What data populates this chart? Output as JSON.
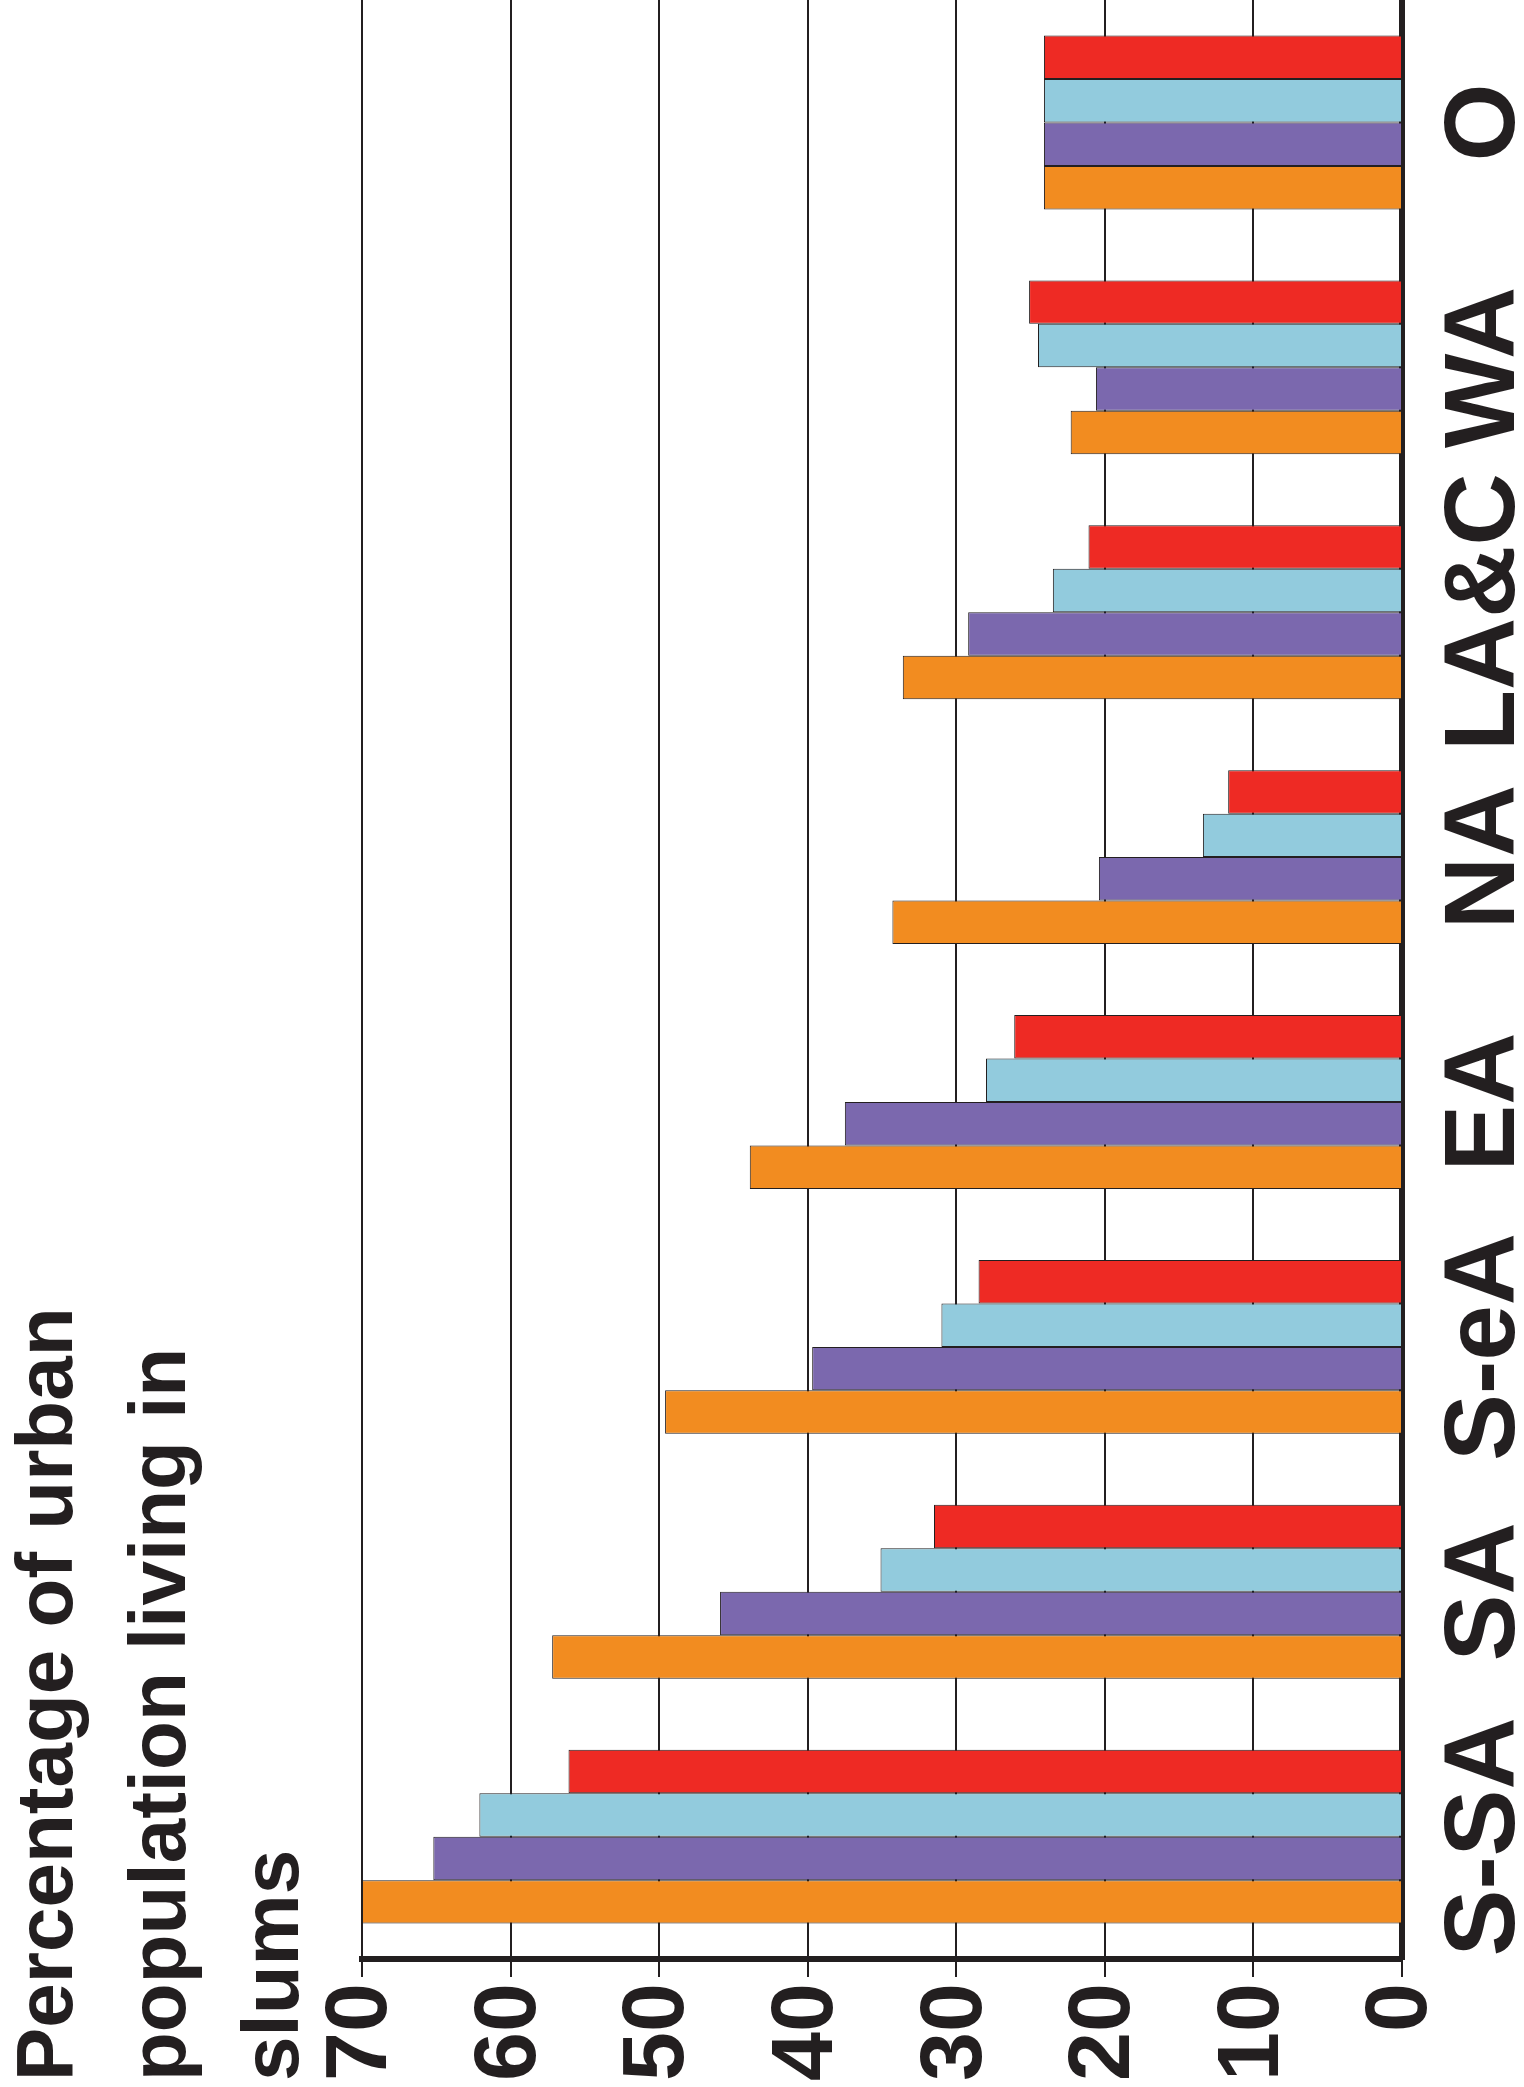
{
  "chart_data": {
    "type": "bar",
    "orientation": "horizontal",
    "title": "Percentage of urban population living in slums",
    "categories": [
      "O",
      "WA",
      "LA&C",
      "NA",
      "EA",
      "S-eA",
      "SA",
      "S-SA"
    ],
    "series": [
      {
        "color": "#ee2a24",
        "values": [
          24.1,
          25.1,
          21.1,
          11.7,
          26.1,
          28.5,
          31.5,
          56.1
        ]
      },
      {
        "color": "#92cbdd",
        "values": [
          24.1,
          24.5,
          23.5,
          13.4,
          28.0,
          31.0,
          35.1,
          62.1
        ]
      },
      {
        "color": "#7b68ae",
        "values": [
          24.1,
          20.6,
          29.2,
          20.4,
          37.5,
          39.7,
          45.9,
          65.2
        ]
      },
      {
        "color": "#f28c20",
        "values": [
          24.1,
          22.3,
          33.6,
          34.3,
          43.9,
          49.6,
          57.2,
          70
        ]
      }
    ],
    "xlim": [
      70,
      0
    ],
    "xticks": [
      0,
      10,
      20,
      30,
      40,
      50,
      60,
      70
    ],
    "grid": "x"
  }
}
